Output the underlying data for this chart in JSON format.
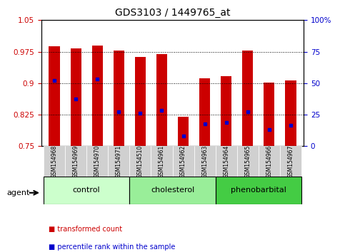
{
  "title": "GDS3103 / 1449765_at",
  "samples": [
    "GSM154968",
    "GSM154969",
    "GSM154970",
    "GSM154971",
    "GSM154510",
    "GSM154961",
    "GSM154962",
    "GSM154963",
    "GSM154964",
    "GSM154965",
    "GSM154966",
    "GSM154967"
  ],
  "bar_heights": [
    0.988,
    0.982,
    0.989,
    0.977,
    0.963,
    0.969,
    0.82,
    0.912,
    0.916,
    0.977,
    0.902,
    0.906
  ],
  "blue_dot_values": [
    0.906,
    0.862,
    0.91,
    0.832,
    0.828,
    0.836,
    0.775,
    0.803,
    0.806,
    0.832,
    0.79,
    0.8
  ],
  "bar_color": "#cc0000",
  "blue_color": "#0000cc",
  "ylim_left": [
    0.75,
    1.05
  ],
  "ylim_right": [
    0,
    100
  ],
  "yticks_left": [
    0.75,
    0.825,
    0.9,
    0.975,
    1.05
  ],
  "yticks_left_labels": [
    "0.75",
    "0.825",
    "0.9",
    "0.975",
    "1.05"
  ],
  "yticks_right": [
    0,
    25,
    50,
    75,
    100
  ],
  "yticks_right_labels": [
    "0",
    "25",
    "50",
    "75",
    "100%"
  ],
  "groups": [
    {
      "label": "control",
      "indices": [
        0,
        1,
        2,
        3
      ],
      "color": "#ccffcc"
    },
    {
      "label": "cholesterol",
      "indices": [
        4,
        5,
        6,
        7
      ],
      "color": "#99ee99"
    },
    {
      "label": "phenobarbital",
      "indices": [
        8,
        9,
        10,
        11
      ],
      "color": "#44cc44"
    }
  ],
  "legend_items": [
    {
      "label": "transformed count",
      "color": "#cc0000"
    },
    {
      "label": "percentile rank within the sample",
      "color": "#0000cc"
    }
  ],
  "agent_label": "agent",
  "bar_width": 0.5,
  "background_color": "#ffffff",
  "plot_bg": "#ffffff",
  "grid_color": "#000000",
  "tick_color_left": "#cc0000",
  "tick_color_right": "#0000cc"
}
